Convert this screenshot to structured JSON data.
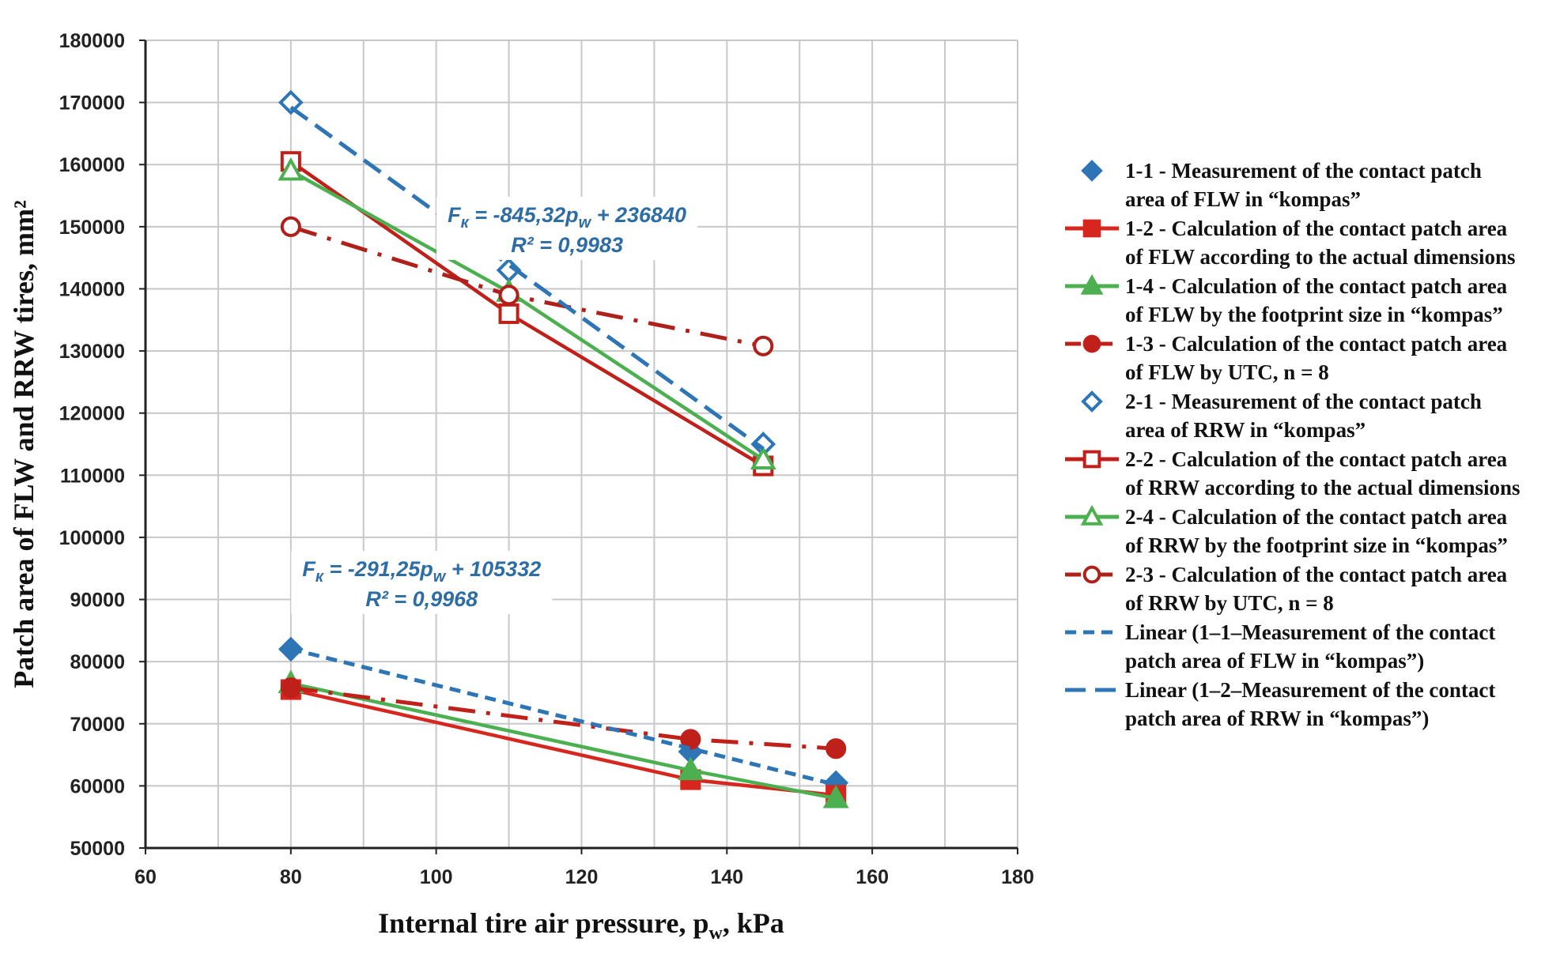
{
  "chart_data": {
    "type": "line",
    "xlabel": "Internal tire air pressure, p",
    "xlabel_sub": "w",
    "xlabel_suffix": ", kPa",
    "ylabel": "Patch area of FLW and RRW tires, mm²",
    "xlim": [
      60,
      180
    ],
    "ylim": [
      50000,
      180000
    ],
    "xticks": [
      60,
      80,
      100,
      120,
      140,
      160,
      180
    ],
    "yticks": [
      50000,
      60000,
      70000,
      80000,
      90000,
      100000,
      110000,
      120000,
      130000,
      140000,
      150000,
      160000,
      170000,
      180000
    ],
    "grid": true,
    "legend_position": "right",
    "series": [
      {
        "name": [
          "1-1 - Measurement of the contact patch",
          "area of FLW in “kompas”"
        ],
        "x": [
          80,
          135,
          155
        ],
        "y": [
          82000,
          65500,
          60500
        ],
        "color": "#2e75b6",
        "marker": "diamond",
        "filled": true,
        "line": "none"
      },
      {
        "name": [
          "1-2 - Calculation of the contact patch area",
          "of FLW according to the actual dimensions"
        ],
        "x": [
          80,
          135,
          155
        ],
        "y": [
          75500,
          61000,
          58500
        ],
        "color": "#d7261e",
        "marker": "square",
        "filled": true,
        "line": "solid"
      },
      {
        "name": [
          "1-4 - Calculation of the contact patch area",
          "of FLW by the footprint size in “kompas”"
        ],
        "x": [
          80,
          135,
          155
        ],
        "y": [
          76500,
          62500,
          58000
        ],
        "color": "#4caf50",
        "marker": "triangle",
        "filled": true,
        "line": "solid"
      },
      {
        "name": [
          "1-3 - Calculation of the contact patch area",
          "of FLW by UTC, n = 8"
        ],
        "x": [
          80,
          135,
          155
        ],
        "y": [
          75800,
          67500,
          66000
        ],
        "color": "#c0201a",
        "marker": "circle",
        "filled": true,
        "line": "dashdot"
      },
      {
        "name": [
          "2-1 - Measurement of the contact patch",
          "area of RRW in “kompas”"
        ],
        "x": [
          80,
          110,
          145
        ],
        "y": [
          170000,
          143000,
          115000
        ],
        "color": "#2e75b6",
        "marker": "diamond",
        "filled": false,
        "line": "none"
      },
      {
        "name": [
          "2-2 - Calculation of the contact patch area",
          "of RRW according to the actual dimensions"
        ],
        "x": [
          80,
          110,
          145
        ],
        "y": [
          160500,
          136000,
          111500
        ],
        "color": "#c0201a",
        "marker": "square",
        "filled": false,
        "line": "solid"
      },
      {
        "name": [
          "2-4 - Calculation of the contact patch area",
          "of RRW by the footprint size in “kompas”"
        ],
        "x": [
          80,
          110,
          145
        ],
        "y": [
          159000,
          139500,
          112500
        ],
        "color": "#4caf50",
        "marker": "triangle",
        "filled": false,
        "line": "solid"
      },
      {
        "name": [
          "2-3 - Calculation of the contact patch area",
          "of RRW by UTC, n = 8"
        ],
        "x": [
          80,
          110,
          145
        ],
        "y": [
          150000,
          139000,
          130800
        ],
        "color": "#b0201a",
        "marker": "circle",
        "filled": false,
        "line": "dashdot"
      },
      {
        "name": [
          "Linear (1–1–Measurement of the contact",
          "patch area of FLW in “kompas”)"
        ],
        "x": [
          80,
          155
        ],
        "y": [
          82032,
          60188
        ],
        "color": "#2e75b6",
        "marker": "none",
        "line": "dash-short"
      },
      {
        "name": [
          "Linear (1–2–Measurement of the contact",
          "patch area of RRW in “kompas”)"
        ],
        "x": [
          80,
          145
        ],
        "y": [
          169214,
          114269
        ],
        "color": "#2e75b6",
        "marker": "none",
        "line": "dash-long"
      }
    ],
    "annotations": [
      {
        "parts": [
          "F",
          "к",
          " = -845,32p",
          "w",
          " + 236840"
        ],
        "r2": "R² = 0,9983",
        "at_x": 118,
        "at_y": 150000
      },
      {
        "parts": [
          "F",
          "к",
          " = -291,25p",
          "w",
          " + 105332"
        ],
        "r2": "R² = 0,9968",
        "at_x": 98,
        "at_y": 93000
      }
    ]
  }
}
